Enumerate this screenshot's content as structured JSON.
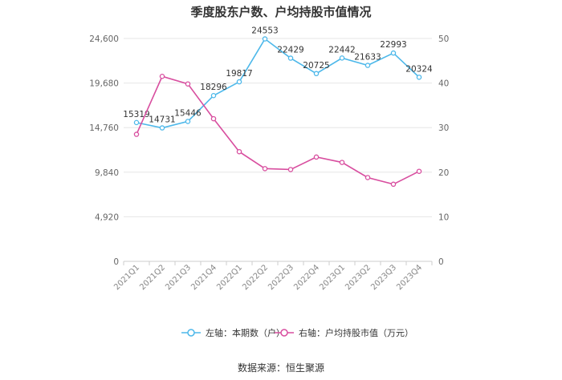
{
  "chart_data": {
    "type": "line",
    "title": "季度股东户数、户均持股市值情况",
    "categories": [
      "2021Q1",
      "2021Q2",
      "2021Q3",
      "2021Q4",
      "2022Q1",
      "2022Q2",
      "2022Q3",
      "2022Q4",
      "2023Q1",
      "2023Q2",
      "2023Q3",
      "2023Q4"
    ],
    "y_left": {
      "ticks": [
        "0",
        "4,920",
        "9,840",
        "14,760",
        "19,680",
        "24,600"
      ],
      "range": [
        0,
        24600
      ]
    },
    "y_right": {
      "ticks": [
        "0",
        "10",
        "20",
        "30",
        "40",
        "50"
      ],
      "range": [
        0,
        50
      ]
    },
    "series": [
      {
        "name": "左轴：本期数（户）",
        "axis": "left",
        "color": "#4db8ea",
        "values": [
          15319,
          14731,
          15446,
          18296,
          19817,
          24553,
          22429,
          20725,
          22442,
          21633,
          22993,
          20324
        ],
        "labels": [
          "15319",
          "14731",
          "15446",
          "18296",
          "19817",
          "24553",
          "22429",
          "20725",
          "22442",
          "21633",
          "22993",
          "20324"
        ]
      },
      {
        "name": "右轴：户均持股市值（万元）",
        "axis": "right",
        "color": "#d84e9f",
        "values": [
          28.5,
          41.5,
          39.8,
          32.0,
          24.6,
          20.8,
          20.6,
          23.4,
          22.2,
          18.8,
          17.3,
          20.2
        ]
      }
    ],
    "source": "数据来源：恒生聚源"
  }
}
